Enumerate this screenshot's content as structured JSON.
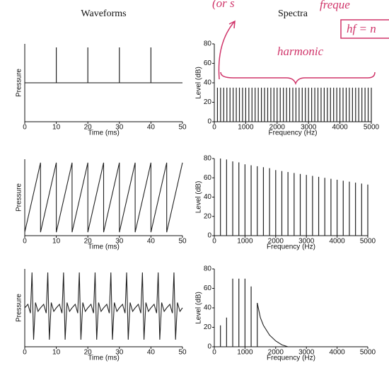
{
  "chart_data": [
    {
      "type": "stem",
      "title": "Waveforms",
      "xlabel": "Time (ms)",
      "ylabel": "Pressure",
      "xlim": [
        0,
        50
      ],
      "xticks": [
        0,
        10,
        20,
        30,
        40,
        50
      ],
      "ylim": [
        -1.1,
        1.1
      ],
      "zero_line": true,
      "color": "#222",
      "series": [
        {
          "x": [
            10,
            20,
            30,
            40
          ],
          "values": [
            1,
            1,
            1,
            1
          ]
        }
      ]
    },
    {
      "type": "stem",
      "title": "Spectra",
      "xlabel": "Frequency (Hz)",
      "ylabel": "Level (dB)",
      "xlim": [
        0,
        5000
      ],
      "xticks": [
        0,
        1000,
        2000,
        3000,
        4000,
        5000
      ],
      "ylim": [
        0,
        80
      ],
      "yticks": [
        0,
        20,
        40,
        60,
        80
      ],
      "color": "#222",
      "annotations": [
        "(or s",
        "freque",
        "hf = n",
        "harmonic"
      ],
      "series": [
        {
          "x": [
            100,
            200,
            300,
            400,
            500,
            600,
            700,
            800,
            900,
            1000,
            1100,
            1200,
            1300,
            1400,
            1500,
            1600,
            1700,
            1800,
            1900,
            2000,
            2100,
            2200,
            2300,
            2400,
            2500,
            2600,
            2700,
            2800,
            2900,
            3000,
            3100,
            3200,
            3300,
            3400,
            3500,
            3600,
            3700,
            3800,
            3900,
            4000,
            4100,
            4200,
            4300,
            4400,
            4500,
            4600,
            4700,
            4800,
            4900,
            5000
          ],
          "values": [
            35,
            35,
            35,
            35,
            35,
            35,
            35,
            35,
            35,
            35,
            35,
            35,
            35,
            35,
            35,
            35,
            35,
            35,
            35,
            35,
            35,
            35,
            35,
            35,
            35,
            35,
            35,
            35,
            35,
            35,
            35,
            35,
            35,
            35,
            35,
            35,
            35,
            35,
            35,
            35,
            35,
            35,
            35,
            35,
            35,
            35,
            35,
            35,
            35,
            35
          ]
        }
      ]
    },
    {
      "type": "line",
      "xlabel": "Time (ms)",
      "ylabel": "Pressure",
      "xlim": [
        0,
        50
      ],
      "xticks": [
        0,
        10,
        20,
        30,
        40,
        50
      ],
      "ylim": [
        -1.1,
        1.1
      ],
      "color": "#222",
      "series": [
        {
          "x": [
            0,
            5,
            5,
            10,
            10,
            15,
            15,
            20,
            20,
            25,
            25,
            30,
            30,
            35,
            35,
            40,
            40,
            45,
            45,
            50
          ],
          "values": [
            -1,
            1,
            -1,
            1,
            -1,
            1,
            -1,
            1,
            -1,
            1,
            -1,
            1,
            -1,
            1,
            -1,
            1,
            -1,
            1,
            -1,
            1
          ]
        }
      ]
    },
    {
      "type": "stem",
      "xlabel": "Frequency (Hz)",
      "ylabel": "Level (dB)",
      "xlim": [
        0,
        5000
      ],
      "xticks": [
        0,
        1000,
        2000,
        3000,
        4000,
        5000
      ],
      "ylim": [
        0,
        80
      ],
      "yticks": [
        0,
        20,
        40,
        60,
        80
      ],
      "color": "#222",
      "series": [
        {
          "x": [
            200,
            400,
            600,
            800,
            1000,
            1200,
            1400,
            1600,
            1800,
            2000,
            2200,
            2400,
            2600,
            2800,
            3000,
            3200,
            3400,
            3600,
            3800,
            4000,
            4200,
            4400,
            4600,
            4800,
            5000
          ],
          "values": [
            80,
            79,
            77,
            76,
            74,
            73,
            72,
            71,
            70,
            68,
            67,
            66,
            65,
            64,
            63,
            62,
            61,
            60,
            59,
            58,
            57,
            56,
            55,
            54,
            53
          ]
        }
      ]
    },
    {
      "type": "line",
      "xlabel": "Time (ms)",
      "ylabel": "Pressure",
      "xlim": [
        0,
        50
      ],
      "xticks": [
        0,
        10,
        20,
        30,
        40,
        50
      ],
      "ylim": [
        -1.1,
        1.1
      ],
      "color": "#222",
      "series": [
        {
          "x": [
            0,
            1,
            1.8,
            2.3,
            2.8,
            3.4,
            4.2,
            5,
            6,
            6.8,
            7.3,
            7.8,
            8.4,
            9.2,
            10,
            11,
            11.8,
            12.3,
            12.8,
            13.4,
            14.2,
            15,
            16,
            16.8,
            17.3,
            17.8,
            18.4,
            19.2,
            20,
            21,
            21.8,
            22.3,
            22.8,
            23.4,
            24.2,
            25,
            26,
            26.8,
            27.3,
            27.8,
            28.4,
            29.2,
            30,
            31,
            31.8,
            32.3,
            32.8,
            33.4,
            34.2,
            35,
            36,
            36.8,
            37.3,
            37.8,
            38.4,
            39.2,
            40,
            41,
            41.8,
            42.3,
            42.8,
            43.4,
            44.2,
            45,
            46,
            46.8,
            47.3,
            47.8,
            48.4,
            49.2,
            50
          ],
          "values": [
            0,
            0.1,
            -0.15,
            1,
            -0.9,
            0.15,
            -0.1,
            0,
            0.1,
            -0.15,
            1,
            -0.9,
            0.15,
            -0.1,
            0,
            0.1,
            -0.15,
            1,
            -0.9,
            0.15,
            -0.1,
            0,
            0.1,
            -0.15,
            1,
            -0.9,
            0.15,
            -0.1,
            0,
            0.1,
            -0.15,
            1,
            -0.9,
            0.15,
            -0.1,
            0,
            0.1,
            -0.15,
            1,
            -0.9,
            0.15,
            -0.1,
            0,
            0.1,
            -0.15,
            1,
            -0.9,
            0.15,
            -0.1,
            0,
            0.1,
            -0.15,
            1,
            -0.9,
            0.15,
            -0.1,
            0,
            0.1,
            -0.15,
            1,
            -0.9,
            0.15,
            -0.1,
            0,
            0.1,
            -0.15,
            1,
            -0.9,
            0.15,
            -0.1,
            0
          ]
        }
      ]
    },
    {
      "type": "stem",
      "xlabel": "Frequency (Hz)",
      "ylabel": "Level (dB)",
      "xlim": [
        0,
        5000
      ],
      "xticks": [
        0,
        1000,
        2000,
        3000,
        4000,
        5000
      ],
      "ylim": [
        0,
        80
      ],
      "yticks": [
        0,
        20,
        40,
        60,
        80
      ],
      "color": "#222",
      "series": [
        {
          "x": [
            200,
            400,
            600,
            800,
            1000,
            1200,
            1400
          ],
          "values": [
            22,
            30,
            70,
            70,
            70,
            62,
            45
          ]
        },
        {
          "type": "line",
          "x": [
            1400,
            1500,
            1600,
            1800,
            2000,
            2200,
            2400
          ],
          "values": [
            45,
            30,
            22,
            12,
            6,
            2,
            0
          ]
        }
      ]
    }
  ]
}
